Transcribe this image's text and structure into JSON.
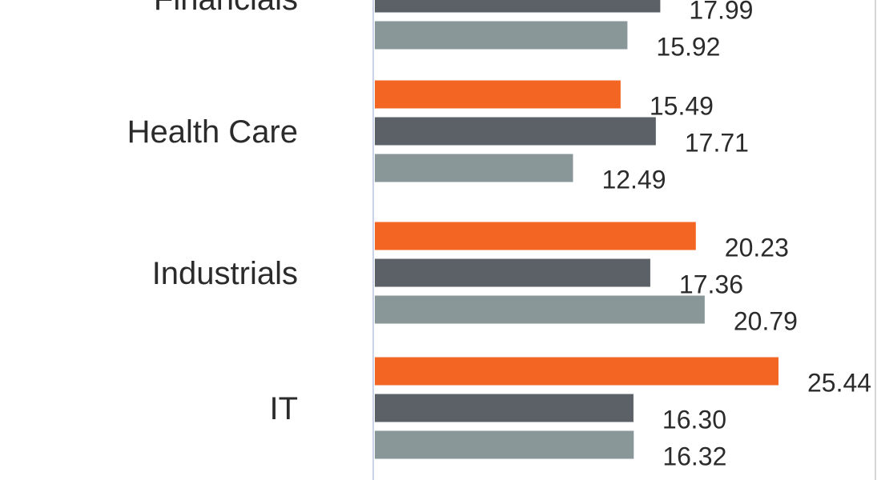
{
  "chart_data": {
    "type": "bar",
    "orientation": "horizontal",
    "categories": [
      "Financials",
      "Health Care",
      "Industrials",
      "IT"
    ],
    "series": [
      {
        "color": "#f26522",
        "values": [
          null,
          15.49,
          20.23,
          25.44
        ]
      },
      {
        "color": "#5b6166",
        "values": [
          17.99,
          17.71,
          17.36,
          16.3
        ]
      },
      {
        "color": "#8a9799",
        "values": [
          15.92,
          12.49,
          20.79,
          16.32
        ]
      }
    ],
    "value_labels": [
      [
        "",
        "15.49",
        "20.23",
        "25.44"
      ],
      [
        "17.99",
        "17.71",
        "17.36",
        "16.30"
      ],
      [
        "15.92",
        "12.49",
        "20.79",
        "16.32"
      ]
    ],
    "title": "",
    "xlabel": "",
    "ylabel": "",
    "xlim": [
      0,
      25.44
    ],
    "grid": false,
    "legend": "none"
  }
}
